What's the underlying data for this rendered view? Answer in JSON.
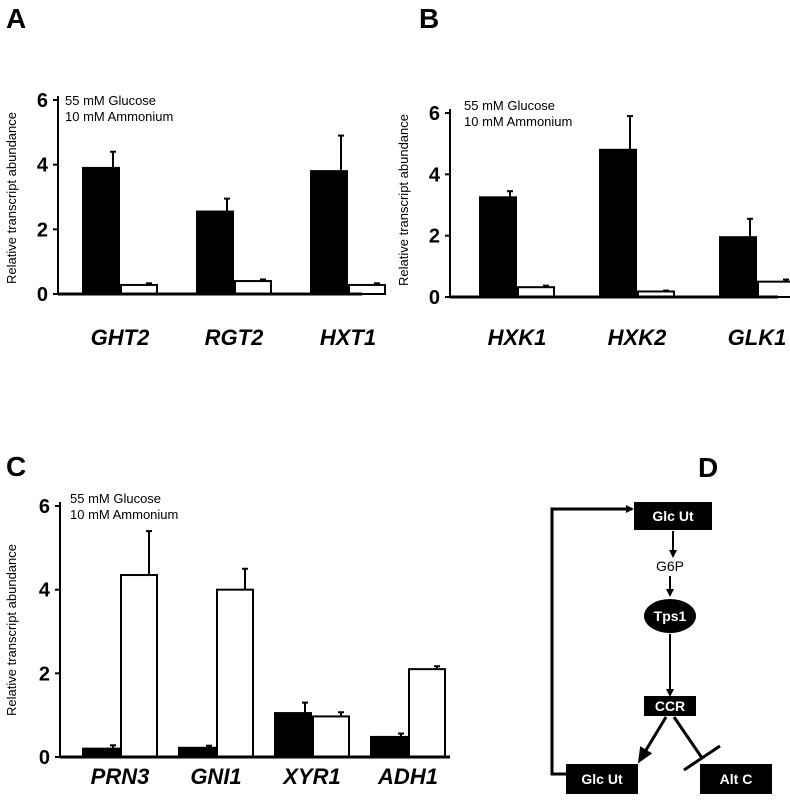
{
  "panels": [
    {
      "letter": "A",
      "annotation": [
        "55 mM Glucose",
        "10 mM Ammonium"
      ],
      "ylabel": "Relative transcript abundance",
      "chart_data": {
        "type": "bar",
        "ylim": [
          0,
          6
        ],
        "yticks": [
          0,
          2,
          4,
          6
        ],
        "categories": [
          "GHT2",
          "RGT2",
          "HXT1"
        ],
        "series": [
          {
            "fill": "#000000",
            "values": [
              3.9,
              2.55,
              3.8
            ],
            "errors": [
              0.5,
              0.4,
              1.1
            ]
          },
          {
            "fill": "#ffffff",
            "values": [
              0.28,
              0.4,
              0.28
            ],
            "errors": [
              0.05,
              0.05,
              0.05
            ]
          }
        ]
      }
    },
    {
      "letter": "B",
      "annotation": [
        "55 mM Glucose",
        "10 mM Ammonium"
      ],
      "ylabel": "Relative transcript abundance",
      "chart_data": {
        "type": "bar",
        "ylim": [
          0,
          6
        ],
        "yticks": [
          0,
          2,
          4,
          6
        ],
        "categories": [
          "HXK1",
          "HXK2",
          "GLK1"
        ],
        "series": [
          {
            "fill": "#000000",
            "values": [
              3.25,
              4.8,
              1.95
            ],
            "errors": [
              0.2,
              1.1,
              0.6
            ]
          },
          {
            "fill": "#ffffff",
            "values": [
              0.32,
              0.18,
              0.5
            ],
            "errors": [
              0.05,
              0.03,
              0.07
            ]
          }
        ]
      }
    },
    {
      "letter": "C",
      "annotation": [
        "55 mM Glucose",
        "10 mM Ammonium"
      ],
      "ylabel": "Relative transcript abundance",
      "chart_data": {
        "type": "bar",
        "ylim": [
          0,
          6
        ],
        "yticks": [
          0,
          2,
          4,
          6
        ],
        "categories": [
          "PRN3",
          "GNI1",
          "XYR1",
          "ADH1"
        ],
        "series": [
          {
            "fill": "#000000",
            "values": [
              0.2,
              0.22,
              1.05,
              0.48
            ],
            "errors": [
              0.08,
              0.05,
              0.25,
              0.08
            ]
          },
          {
            "fill": "#ffffff",
            "values": [
              4.35,
              4.0,
              0.97,
              2.1
            ],
            "errors": [
              1.05,
              0.5,
              0.1,
              0.07
            ]
          }
        ]
      }
    }
  ],
  "diagram": {
    "letter": "D",
    "glc_ut_top": "Glc Ut",
    "g6p": "G6P",
    "tps1": "Tps1",
    "ccr": "CCR",
    "glc_ut_bottom": "Glc Ut",
    "alt_c": "Alt C"
  }
}
